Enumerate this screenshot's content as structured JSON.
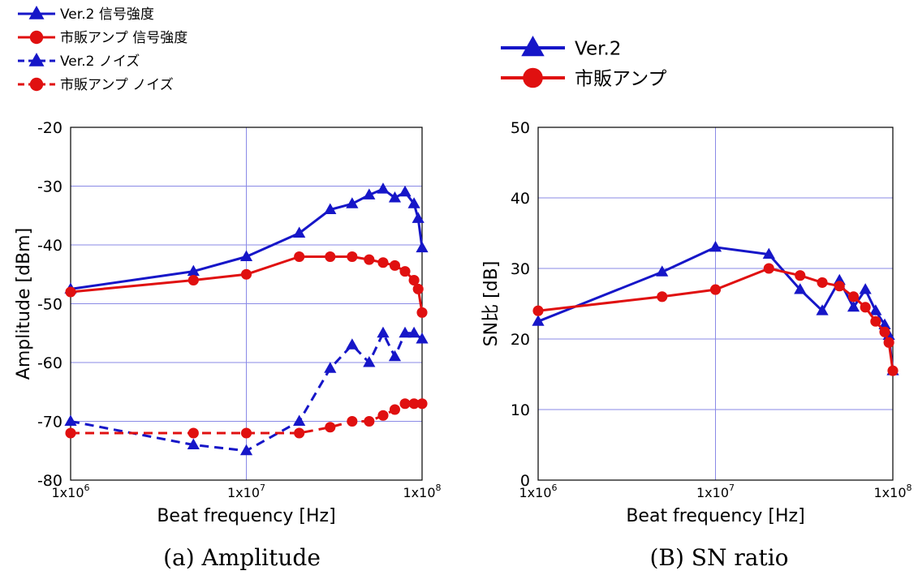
{
  "colors": {
    "blue": "#1616c8",
    "red": "#e01010",
    "grid": "#8a8ae6",
    "frame": "#000000"
  },
  "legend_a": [
    {
      "label": "Ver.2  信号強度",
      "color": "#1616c8",
      "marker": "triangle",
      "dash": false
    },
    {
      "label": "市販アンプ  信号強度",
      "color": "#e01010",
      "marker": "circle",
      "dash": false
    },
    {
      "label": "Ver.2  ノイズ",
      "color": "#1616c8",
      "marker": "triangle",
      "dash": true
    },
    {
      "label": "市販アンプ  ノイズ",
      "color": "#e01010",
      "marker": "circle",
      "dash": true
    }
  ],
  "legend_b": [
    {
      "label": "Ver.2",
      "color": "#1616c8",
      "marker": "triangle",
      "dash": false
    },
    {
      "label": "市販アンプ",
      "color": "#e01010",
      "marker": "circle",
      "dash": false
    }
  ],
  "captions": {
    "a": "(a) Amplitude",
    "b": "(B) SN ratio"
  },
  "chart_data": [
    {
      "type": "line",
      "title": "",
      "xlabel": "Beat frequency [Hz]",
      "ylabel": "Amplitude [dBm]",
      "xscale": "log",
      "xlim": [
        1000000,
        100000000
      ],
      "ylim": [
        -80,
        -20
      ],
      "xticks": [
        {
          "value": 1000000,
          "mant": "1x10",
          "exp": "6"
        },
        {
          "value": 10000000,
          "mant": "1x10",
          "exp": "7"
        },
        {
          "value": 100000000,
          "mant": "1x10",
          "exp": "8"
        }
      ],
      "yticks": [
        -80,
        -70,
        -60,
        -50,
        -40,
        -30,
        -20
      ],
      "ytick_labels": [
        "-80",
        "-70",
        "-60",
        "-50",
        "-40",
        "-30",
        "-20"
      ],
      "grid": true,
      "series": [
        {
          "name": "Ver.2  信号強度",
          "color": "#1616c8",
          "marker": "triangle",
          "dash": false,
          "x": [
            1000000,
            5000000,
            10000000,
            20000000,
            30000000,
            40000000,
            50000000,
            60000000,
            70000000,
            80000000,
            90000000,
            95000000,
            100000000
          ],
          "y": [
            -47.5,
            -44.5,
            -42,
            -38,
            -34,
            -33,
            -31.5,
            -30.5,
            -32,
            -31,
            -33,
            -35.5,
            -40.5
          ]
        },
        {
          "name": "市販アンプ  信号強度",
          "color": "#e01010",
          "marker": "circle",
          "dash": false,
          "x": [
            1000000,
            5000000,
            10000000,
            20000000,
            30000000,
            40000000,
            50000000,
            60000000,
            70000000,
            80000000,
            90000000,
            95000000,
            100000000
          ],
          "y": [
            -48,
            -46,
            -45,
            -42,
            -42,
            -42,
            -42.5,
            -43,
            -43.5,
            -44.5,
            -46,
            -47.5,
            -51.5
          ]
        },
        {
          "name": "Ver.2  ノイズ",
          "color": "#1616c8",
          "marker": "triangle",
          "dash": true,
          "x": [
            1000000,
            5000000,
            10000000,
            20000000,
            30000000,
            40000000,
            50000000,
            60000000,
            70000000,
            80000000,
            90000000,
            100000000
          ],
          "y": [
            -70,
            -74,
            -75,
            -70,
            -61,
            -57,
            -60,
            -55,
            -59,
            -55,
            -55,
            -56
          ]
        },
        {
          "name": "市販アンプ  ノイズ",
          "color": "#e01010",
          "marker": "circle",
          "dash": true,
          "x": [
            1000000,
            5000000,
            10000000,
            20000000,
            30000000,
            40000000,
            50000000,
            60000000,
            70000000,
            80000000,
            90000000,
            100000000
          ],
          "y": [
            -72,
            -72,
            -72,
            -72,
            -71,
            -70,
            -70,
            -69,
            -68,
            -67,
            -67,
            -67
          ]
        }
      ]
    },
    {
      "type": "line",
      "title": "",
      "xlabel": "Beat frequency [Hz]",
      "ylabel": "SN比 [dB]",
      "xscale": "log",
      "xlim": [
        1000000,
        100000000
      ],
      "ylim": [
        0,
        50
      ],
      "xticks": [
        {
          "value": 1000000,
          "mant": "1x10",
          "exp": "6"
        },
        {
          "value": 10000000,
          "mant": "1x10",
          "exp": "7"
        },
        {
          "value": 100000000,
          "mant": "1x10",
          "exp": "8"
        }
      ],
      "yticks": [
        0,
        10,
        20,
        30,
        40,
        50
      ],
      "ytick_labels": [
        "0",
        "10",
        "20",
        "30",
        "40",
        "50"
      ],
      "grid": true,
      "series": [
        {
          "name": "Ver.2",
          "color": "#1616c8",
          "marker": "triangle",
          "dash": false,
          "x": [
            1000000,
            5000000,
            10000000,
            20000000,
            30000000,
            40000000,
            50000000,
            60000000,
            70000000,
            80000000,
            90000000,
            95000000,
            100000000
          ],
          "y": [
            22.5,
            29.5,
            33,
            32,
            27,
            24,
            28.3,
            24.5,
            27,
            24,
            22,
            20.5,
            15.5
          ]
        },
        {
          "name": "市販アンプ",
          "color": "#e01010",
          "marker": "circle",
          "dash": false,
          "x": [
            1000000,
            5000000,
            10000000,
            20000000,
            30000000,
            40000000,
            50000000,
            60000000,
            70000000,
            80000000,
            90000000,
            95000000,
            100000000
          ],
          "y": [
            24,
            26,
            27,
            30,
            29,
            28,
            27.5,
            26,
            24.5,
            22.5,
            21,
            19.5,
            15.5
          ]
        }
      ]
    }
  ]
}
